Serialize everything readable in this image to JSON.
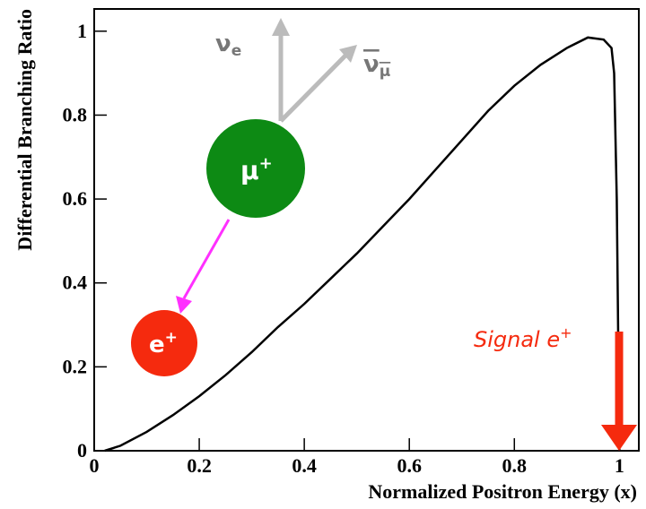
{
  "chart_data": {
    "type": "line",
    "xlabel": "Normalized Positron Energy (x)",
    "ylabel": "Differential Branching Ratio",
    "xlim": [
      0,
      1.037
    ],
    "ylim": [
      0,
      1.053
    ],
    "xticks": [
      0,
      0.2,
      0.4,
      0.6,
      0.8,
      1
    ],
    "yticks": [
      0,
      0.2,
      0.4,
      0.6,
      0.8,
      1
    ],
    "series": [
      {
        "color": "#000000",
        "x": [
          0.02,
          0.05,
          0.1,
          0.15,
          0.2,
          0.25,
          0.3,
          0.35,
          0.4,
          0.45,
          0.5,
          0.55,
          0.6,
          0.65,
          0.7,
          0.75,
          0.8,
          0.85,
          0.9,
          0.94,
          0.97,
          0.985,
          0.99,
          0.995,
          1.0
        ],
        "values": [
          0.0,
          0.012,
          0.045,
          0.085,
          0.13,
          0.18,
          0.235,
          0.295,
          0.35,
          0.41,
          0.47,
          0.535,
          0.6,
          0.67,
          0.74,
          0.81,
          0.87,
          0.92,
          0.96,
          0.985,
          0.98,
          0.96,
          0.9,
          0.6,
          0.0
        ]
      }
    ],
    "annotations": {
      "nu_e": {
        "base": "ν",
        "sub": "e"
      },
      "nu_mu_bar": {
        "base": "ν",
        "sub": "μ"
      },
      "muon": {
        "base": "μ",
        "sup": "+"
      },
      "positron": {
        "base": "e",
        "sup": "+"
      },
      "signal": {
        "text": "Signal e",
        "sup": "+"
      }
    }
  }
}
